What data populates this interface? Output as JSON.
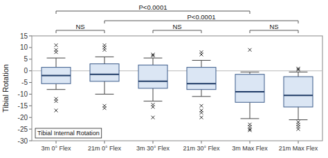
{
  "chart_data": {
    "type": "box",
    "categories": [
      "3m 0° Flex",
      "21m 0° Flex",
      "3m 30° Flex",
      "21m 30° Flex",
      "3m Max Flex",
      "21m Max Flex"
    ],
    "boxes": [
      {
        "q1": -5.5,
        "median": -2.0,
        "q3": 1.5,
        "whisker_low": -8.0,
        "whisker_high": 5.5,
        "outliers": [
          -12,
          -13,
          -17,
          8,
          9,
          11
        ]
      },
      {
        "q1": -4.5,
        "median": -1.5,
        "q3": 3.0,
        "whisker_low": -10,
        "whisker_high": 6.0,
        "outliers": [
          -15,
          -16,
          9,
          10,
          11
        ]
      },
      {
        "q1": -7.5,
        "median": -4.5,
        "q3": 2.5,
        "whisker_low": -13,
        "whisker_high": 5.5,
        "outliers": [
          -14.5,
          -15.5,
          -20,
          6.5,
          7
        ]
      },
      {
        "q1": -8.0,
        "median": -5.5,
        "q3": 1.5,
        "whisker_low": -11,
        "whisker_high": 4.5,
        "outliers": [
          -15,
          -17,
          -18,
          -20,
          7,
          8
        ]
      },
      {
        "q1": -13.5,
        "median": -9.0,
        "q3": -1.5,
        "whisker_low": -20.5,
        "whisker_high": -0.5,
        "outliers": [
          -23,
          -24,
          -25,
          -25.5,
          9
        ]
      },
      {
        "q1": -15.5,
        "median": -10.5,
        "q3": -2.5,
        "whisker_low": -21.0,
        "whisker_high": -0.5,
        "outliers": [
          -22,
          -23,
          -24,
          -25,
          0.5,
          1.0
        ]
      }
    ],
    "ylim": [
      -30,
      15
    ],
    "yticks": [
      -30,
      -25,
      -20,
      -15,
      -10,
      -5,
      0,
      5,
      10,
      15
    ],
    "ylabel": "Tibial Rotation",
    "annotation": "Tibial Internal Rotation",
    "reference_line": 0,
    "ns_brackets": [
      {
        "x1": 0,
        "x2": 1,
        "label": "NS"
      },
      {
        "x1": 2,
        "x2": 3,
        "label": "NS"
      },
      {
        "x1": 4,
        "x2": 5,
        "label": "NS"
      }
    ],
    "sig_brackets": [
      {
        "x1": 0,
        "x2": 4,
        "label": "P<0.0001"
      },
      {
        "x1": 1,
        "x2": 5,
        "label": "P<0.0001"
      }
    ]
  }
}
